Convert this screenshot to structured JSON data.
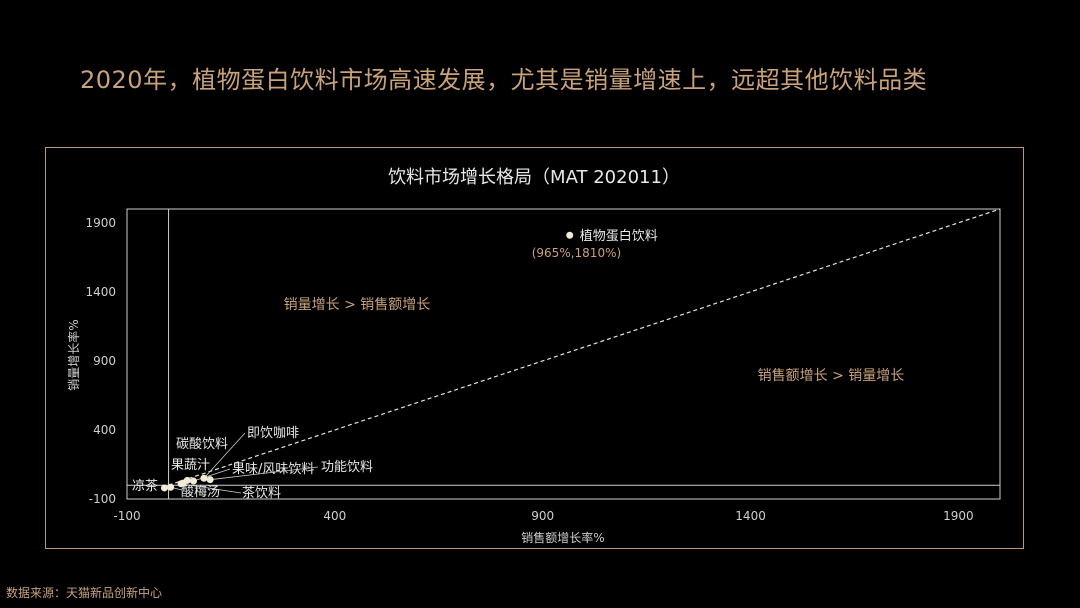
{
  "headline": "2020年，植物蛋白饮料市场高速发展，尤其是销量增速上，远超其他饮料品类",
  "source": "数据来源：天猫新品创新中心",
  "colors": {
    "background": "#000000",
    "accent": "#c9a27a",
    "axis": "#cfcfcf",
    "text": "#e8e8e8",
    "point": "#f3ead8",
    "frame": "#b99a78"
  },
  "chart_data": {
    "type": "scatter",
    "title": "饮料市场增长格局（MAT 202011）",
    "xlabel": "销售额增长率%",
    "ylabel": "销量增长率%",
    "xlim": [
      -100,
      2000
    ],
    "ylim": [
      -100,
      2000
    ],
    "x_ticks": [
      "-100",
      "400",
      "900",
      "1400",
      "1900"
    ],
    "y_ticks": [
      "1900",
      "1400",
      "900",
      "400",
      "-100"
    ],
    "x_tick_values": [
      -100,
      400,
      900,
      1400,
      1900
    ],
    "y_tick_values": [
      1900,
      1400,
      900,
      400,
      -100
    ],
    "reference_line": "diagonal y = x (dashed)",
    "region_labels": [
      {
        "text": "销量增长 > 销售额增长",
        "region": "upper-left"
      },
      {
        "text": "销售额增长 > 销量增长",
        "region": "lower-right"
      }
    ],
    "points": [
      {
        "name": "植物蛋白饮料",
        "x": 965,
        "y": 1810,
        "value_label": "(965%,1810%)"
      },
      {
        "name": "凉茶",
        "x": -10,
        "y": -20
      },
      {
        "name": "酸梅汤",
        "x": 5,
        "y": -15
      },
      {
        "name": "茶饮料",
        "x": 30,
        "y": 10
      },
      {
        "name": "果蔬汁",
        "x": 35,
        "y": 15
      },
      {
        "name": "碳酸饮料",
        "x": 45,
        "y": 35
      },
      {
        "name": "果味/风味饮料",
        "x": 60,
        "y": 30
      },
      {
        "name": "即饮咖啡",
        "x": 85,
        "y": 50
      },
      {
        "name": "功能饮料",
        "x": 100,
        "y": 40
      }
    ]
  }
}
